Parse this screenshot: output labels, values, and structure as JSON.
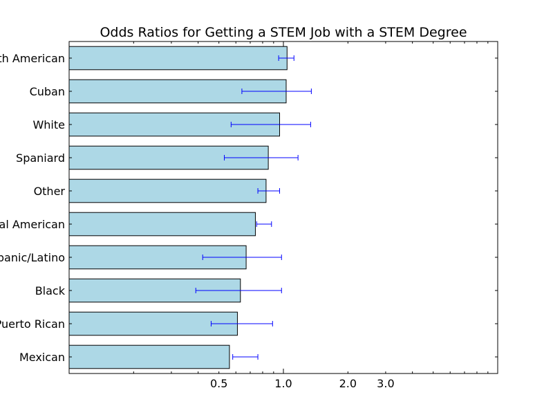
{
  "chart_data": {
    "type": "bar",
    "orientation": "horizontal",
    "title": "Odds Ratios for Getting a STEM Job with a STEM Degree",
    "xlabel": "",
    "ylabel": "",
    "x_scale": "log",
    "xlim": [
      0.1,
      10
    ],
    "x_ticks": [
      0.5,
      1.0,
      2.0,
      3.0
    ],
    "x_tick_labels": [
      "0.5",
      "1.0",
      "2.0",
      "3.0"
    ],
    "grid": false,
    "legend": "none",
    "bar_color": "#add8e6",
    "error_color": "#0000ff",
    "categories": [
      "South American",
      "Cuban",
      "White",
      "Spaniard",
      "Other",
      "Central American",
      "Hispanic/Latino",
      "Black",
      "Puerto Rican",
      "Mexican"
    ],
    "values": [
      1.04,
      1.03,
      0.96,
      0.85,
      0.83,
      0.74,
      0.67,
      0.63,
      0.61,
      0.56
    ],
    "error_low": [
      0.95,
      0.64,
      0.57,
      0.53,
      0.76,
      0.75,
      0.42,
      0.39,
      0.46,
      0.58
    ],
    "error_high": [
      1.12,
      1.35,
      1.34,
      1.17,
      0.96,
      0.88,
      0.98,
      0.98,
      0.89,
      0.76
    ]
  }
}
